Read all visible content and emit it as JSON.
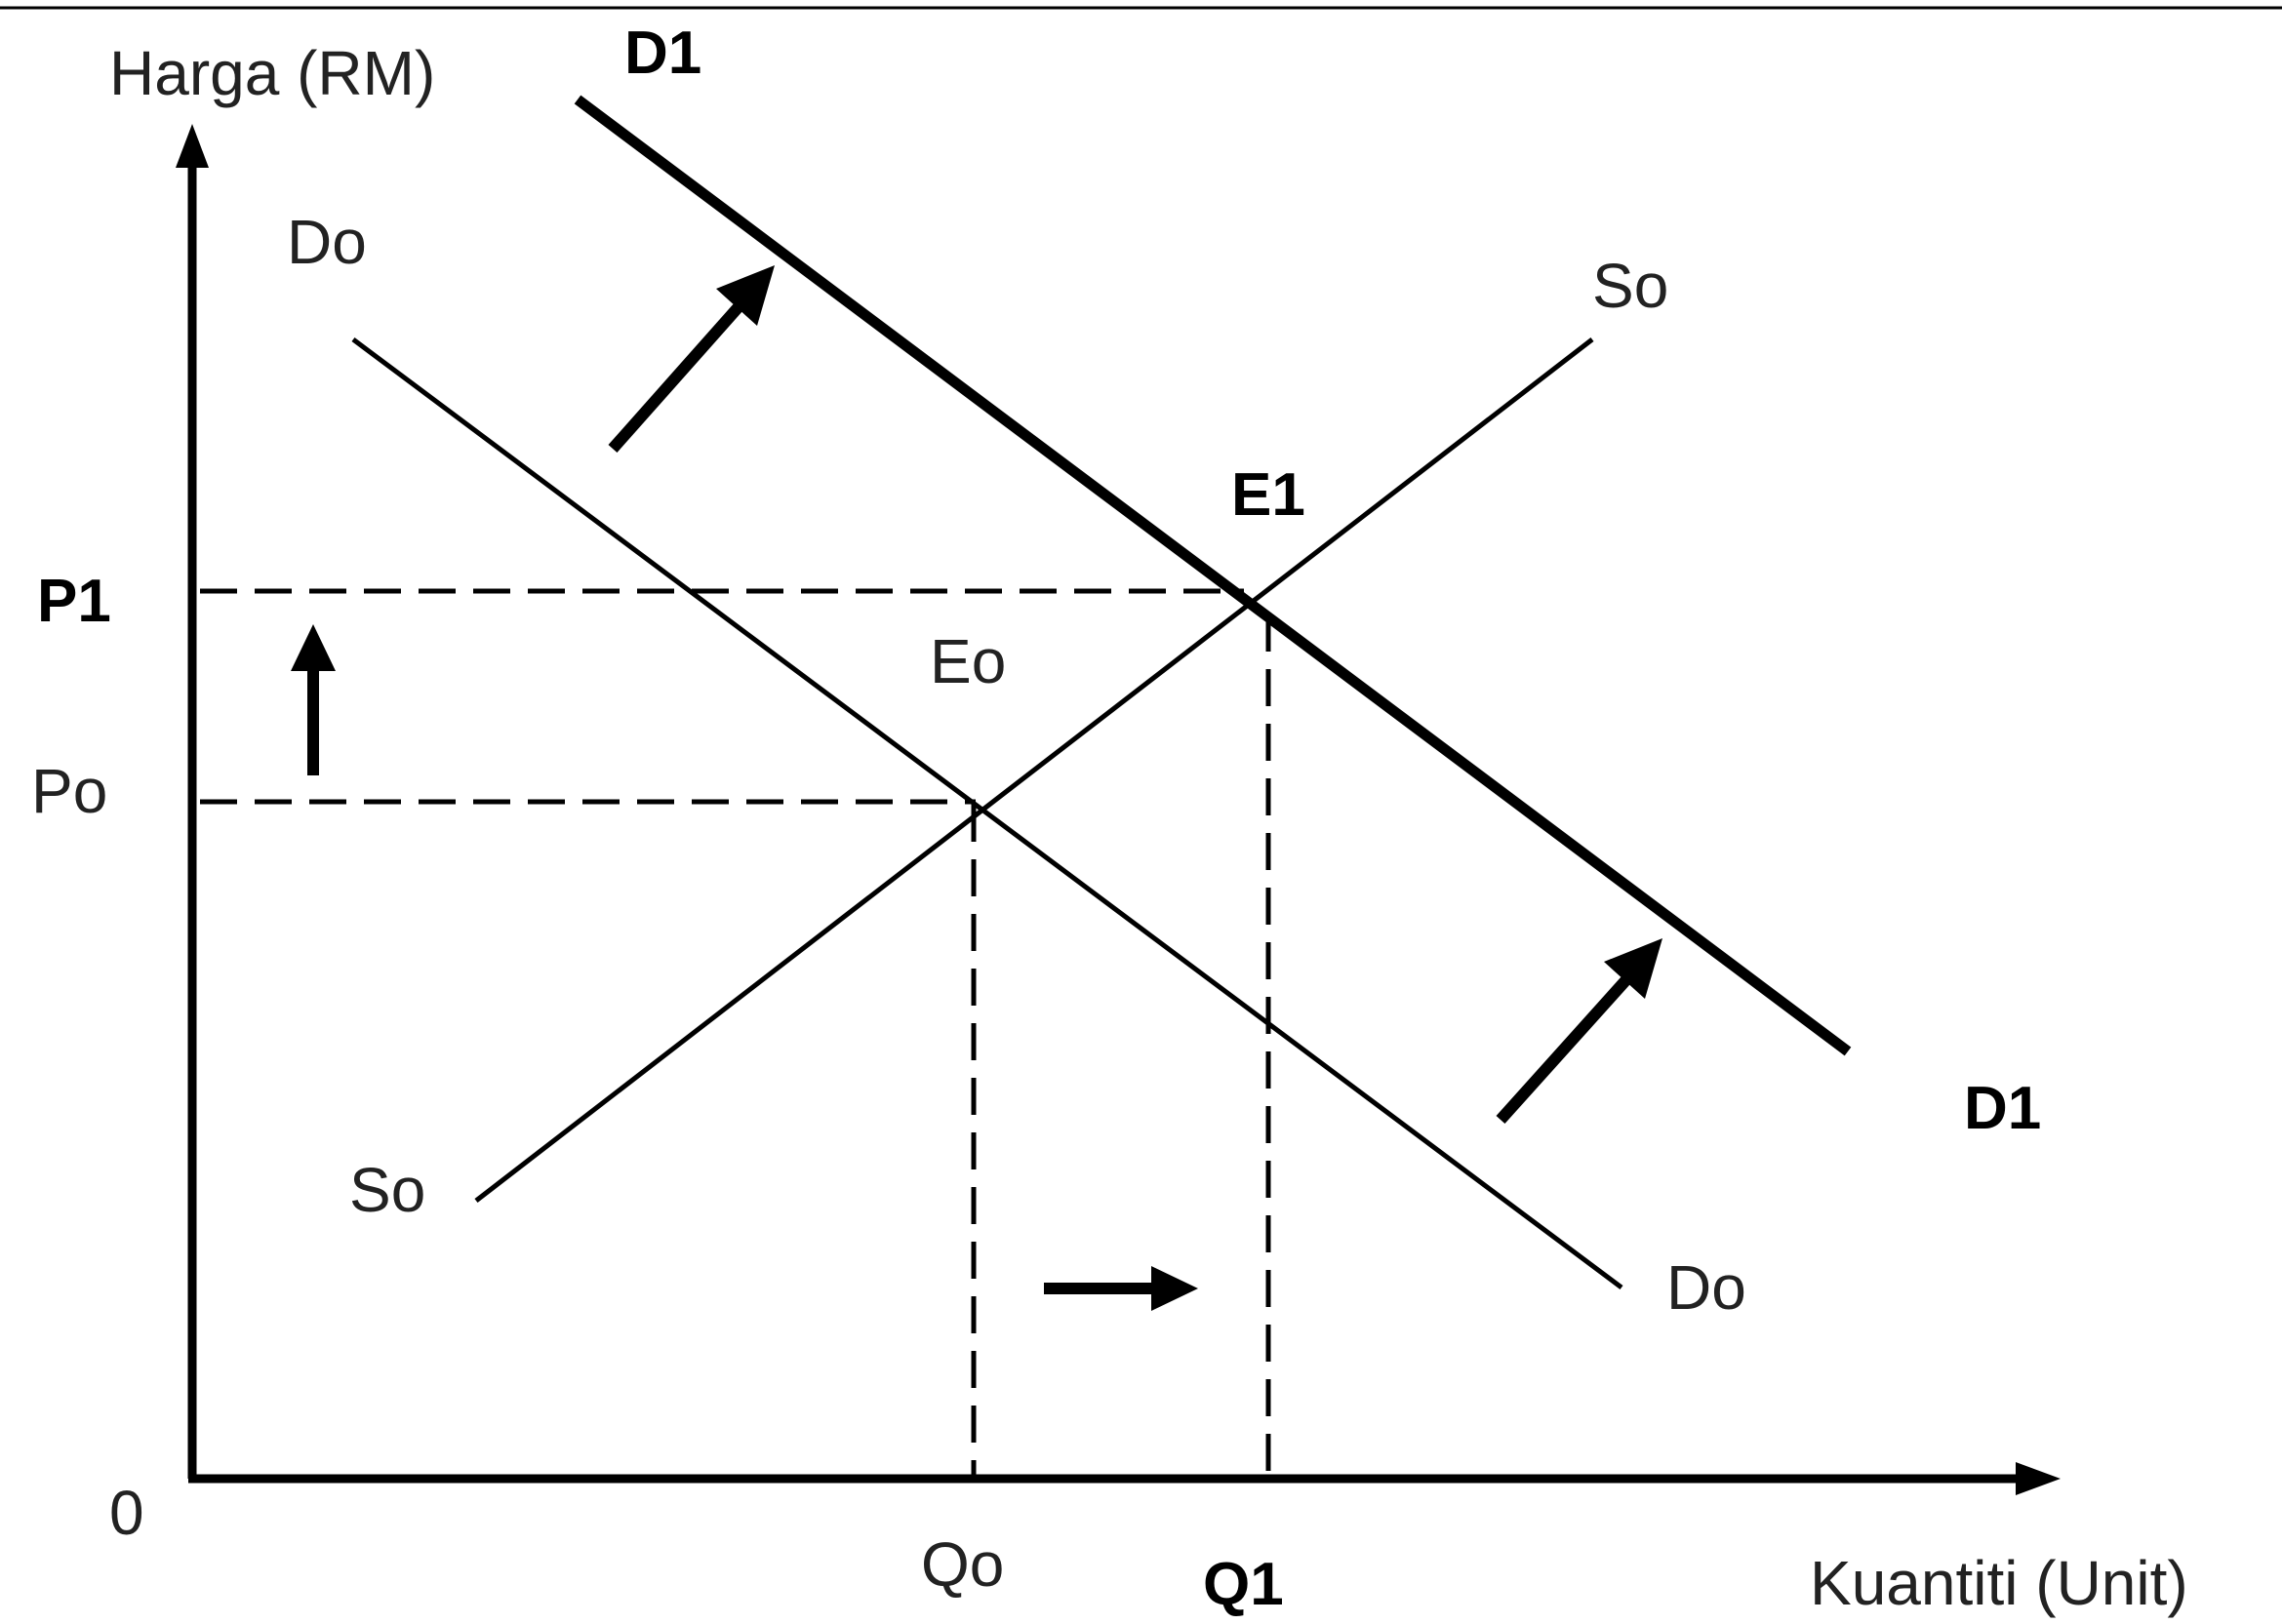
{
  "axes": {
    "y_label": "Harga (RM)",
    "x_label": "Kuantiti (Unit)",
    "origin_label": "0"
  },
  "curves": {
    "demand_original": {
      "label_top": "Do",
      "label_bottom": "Do"
    },
    "demand_new": {
      "label_top": "D1",
      "label_bottom": "D1"
    },
    "supply": {
      "label_top": "So",
      "label_bottom": "So"
    }
  },
  "equilibria": {
    "original": {
      "label": "Eo",
      "price_label": "Po",
      "quantity_label": "Qo"
    },
    "new": {
      "label": "E1",
      "price_label": "P1",
      "quantity_label": "Q1"
    }
  },
  "colors": {
    "lines": "#000000",
    "text": "#222222"
  },
  "icons": [
    "arrow-up-right-icon",
    "arrow-up-icon",
    "arrow-right-icon"
  ]
}
